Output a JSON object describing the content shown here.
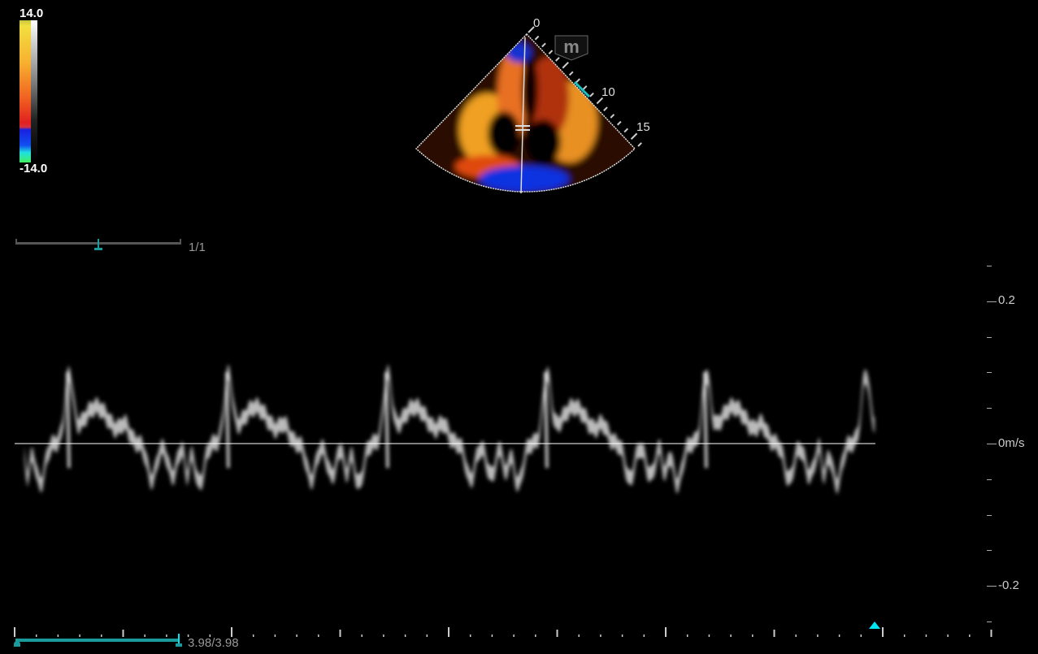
{
  "color_scale": {
    "max_label": "14.0",
    "min_label": "-14.0"
  },
  "sector": {
    "depth_labels": [
      "0",
      "10",
      "15"
    ],
    "mode_badge": "m",
    "accent_color": "#18c0c0"
  },
  "frame_slider": {
    "counter": "1/1",
    "position_fraction": 0.5
  },
  "doppler": {
    "velocity_labels": {
      "top": "0.2",
      "zero": "0m/s",
      "bottom": "-0.2"
    },
    "baseline_color": "#ffffff"
  },
  "cine_slider": {
    "counter": "3.98/3.98",
    "fill_fraction": 1.0,
    "accent_color": "#1a9a9a",
    "marker_color": "#00e5f0"
  }
}
